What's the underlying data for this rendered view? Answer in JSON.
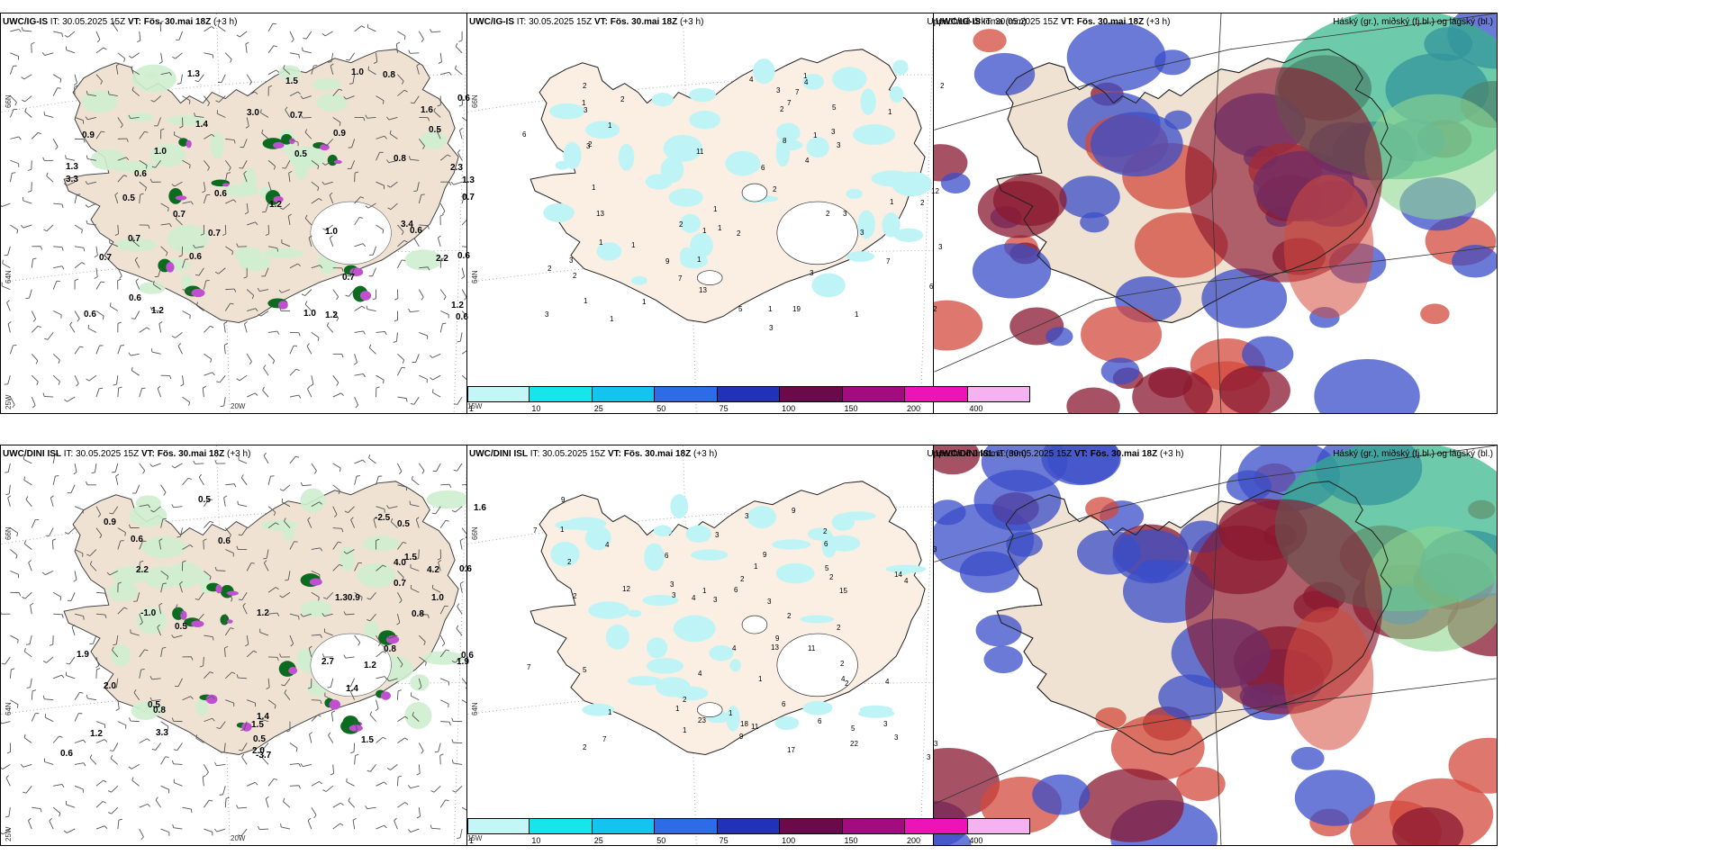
{
  "colors": {
    "land": "#f0e2d3",
    "land_light": "#fbeee2",
    "green": "#8fd68f",
    "green_light": "#cfeecf",
    "dark_green": "#0b6b1e",
    "magenta": "#c050d0",
    "cyan_light": "#bff4f6",
    "blue": "#3a4ec8",
    "red_dark": "#8a1830",
    "red": "#d34a3c",
    "teal": "#2fb487"
  },
  "panels": [
    {
      "model": "UWC/IG-IS",
      "it_label": "IT:",
      "it_value": "30.05.2025 15Z",
      "vt_label": "VT:",
      "vt_value": "Fös. 30.mai 18Z",
      "lead": "(+3 h)",
      "right_title": "",
      "axis": {
        "lat_top": "66N",
        "lat_mid": "64N",
        "lon_left": "25W",
        "lon_20": "20W",
        "lon_15": "15W"
      },
      "values": [
        "1.4",
        "2.3",
        "0.9",
        "1.3",
        "0.6",
        "0.6",
        "0.7",
        "1.0",
        "2.2",
        "1.6",
        "1.0",
        "0.6",
        "0.8",
        "0.6",
        "0.7",
        "1.2",
        "0.7",
        "1.3",
        "1.3",
        "3.0",
        "1.2",
        "0.7",
        "0.6",
        "0.7",
        "0.5",
        "0.8",
        "0.6",
        "0.7",
        "1.0",
        "0.6",
        "1.2",
        "0.6",
        "0.5",
        "1.5",
        "0.6",
        "3.3",
        "0.7",
        "1.0",
        "0.5",
        "3.4",
        "1.2",
        "0.9"
      ]
    },
    {
      "model": "UWC/IG-IS",
      "it_label": "IT:",
      "it_value": "30.05.2025 15Z",
      "vt_label": "VT:",
      "vt_value": "Fös. 30.mai 18Z",
      "lead": "(+3 h)",
      "right_title": "Uppsöfnuð úrkoma (mm)",
      "axis": {
        "lat_top": "66N",
        "lat_mid": "64N",
        "lon_left": "",
        "lon_20": "",
        "lon_15": ""
      },
      "values": [
        "1",
        "1",
        "2",
        "7",
        "1",
        "2",
        "3",
        "1",
        "1",
        "2",
        "1",
        "2",
        "1",
        "7",
        "6",
        "12",
        "7",
        "3",
        "2",
        "1",
        "1",
        "1",
        "2",
        "3",
        "1",
        "3",
        "2",
        "3",
        "1",
        "8",
        "19",
        "6",
        "5",
        "3",
        "1",
        "13",
        "3",
        "4",
        "2",
        "5",
        "4",
        "1",
        "11",
        "3",
        "3",
        "2",
        "3",
        "1",
        "3",
        "1",
        "1",
        "2",
        "2",
        "6",
        "1",
        "13",
        "9",
        "4",
        "2",
        "3",
        "7",
        "2"
      ]
    },
    {
      "model": "UWC/IG-IS",
      "it_label": "IT:",
      "it_value": "30.05.2025 15Z",
      "vt_label": "VT:",
      "vt_value": "Fös. 30.mai 18Z",
      "lead": "(+3 h)",
      "right_title": "Háský (gr.), miðský (fj.bl.) og lágský (bl.)",
      "axis": {
        "lat_top": "",
        "lat_mid": "",
        "lon_left": "",
        "lon_20": "",
        "lon_15": ""
      },
      "values": []
    },
    {
      "model": "UWC/DINI ISL",
      "it_label": "IT:",
      "it_value": "30.05.2025 15Z",
      "vt_label": "VT:",
      "vt_value": "Fös. 30.mai 18Z",
      "lead": "(+3 h)",
      "right_title": "",
      "axis": {
        "lat_top": "66N",
        "lat_mid": "64N",
        "lon_left": "25W",
        "lon_20": "20W",
        "lon_15": "15W"
      },
      "values": [
        "2.2",
        "2.7",
        "2.0",
        "1.30.9",
        "1.4",
        "2.0",
        "0.8",
        "0.6",
        "0.5",
        "3.3",
        "0.8",
        "1.2",
        "0.6",
        "-3.7",
        "0.7",
        "1.0",
        "0.6",
        "0.9",
        "-1.0",
        "0.8",
        "-2.5",
        "0.5",
        "0.6",
        "1.9",
        "1.5",
        "1.2",
        "0.5",
        "1.2",
        "1.5",
        "1.9",
        "0.5",
        "4.0",
        "0.5",
        "0.6",
        "1.6",
        "1.4",
        "4.2",
        "1.5"
      ]
    },
    {
      "model": "UWC/DINI ISL",
      "it_label": "IT:",
      "it_value": "30.05.2025 15Z",
      "vt_label": "VT:",
      "vt_value": "Fös. 30.mai 18Z",
      "lead": "(+3 h)",
      "right_title": "Uppsöfnuð úrkoma (mm)",
      "axis": {
        "lat_top": "66N",
        "lat_mid": "64N",
        "lon_left": "",
        "lon_20": "",
        "lon_15": ""
      },
      "values": [
        "2",
        "4",
        "9",
        "1",
        "3",
        "9",
        "3",
        "2",
        "5",
        "1",
        "3",
        "3",
        "23",
        "3",
        "6",
        "3",
        "4",
        "5",
        "4",
        "3",
        "7",
        "7",
        "9",
        "11",
        "2",
        "6",
        "1",
        "1",
        "4",
        "6",
        "3",
        "4",
        "9",
        "9",
        "13",
        "17",
        "18",
        "15",
        "2",
        "1",
        "12",
        "2",
        "6",
        "1",
        "2",
        "4",
        "2",
        "11",
        "7",
        "3",
        "2",
        "6",
        "1",
        "22",
        "1",
        "4",
        "14",
        "3",
        "2",
        "2",
        "3",
        "5",
        "2"
      ]
    },
    {
      "model": "UWC/DINI ISL",
      "it_label": "IT:",
      "it_value": "30.05.2025 15Z",
      "vt_label": "VT:",
      "vt_value": "Fös. 30.mai 18Z",
      "lead": "(+3 h)",
      "right_title": "Háský (gr.), miðský (fj.bl.) og lágský (bl.)",
      "axis": {
        "lat_top": "",
        "lat_mid": "",
        "lon_left": "",
        "lon_20": "",
        "lon_15": ""
      },
      "values": []
    }
  ],
  "colorbar": {
    "ticks": [
      "1",
      "10",
      "25",
      "50",
      "75",
      "100",
      "150",
      "200",
      "400"
    ],
    "colors": [
      "#c4f6f8",
      "#16e6ea",
      "#14c4ee",
      "#2e6be6",
      "#2032b8",
      "#6a0a4a",
      "#a30c7e",
      "#ec14b6",
      "#f4b2f0"
    ]
  }
}
